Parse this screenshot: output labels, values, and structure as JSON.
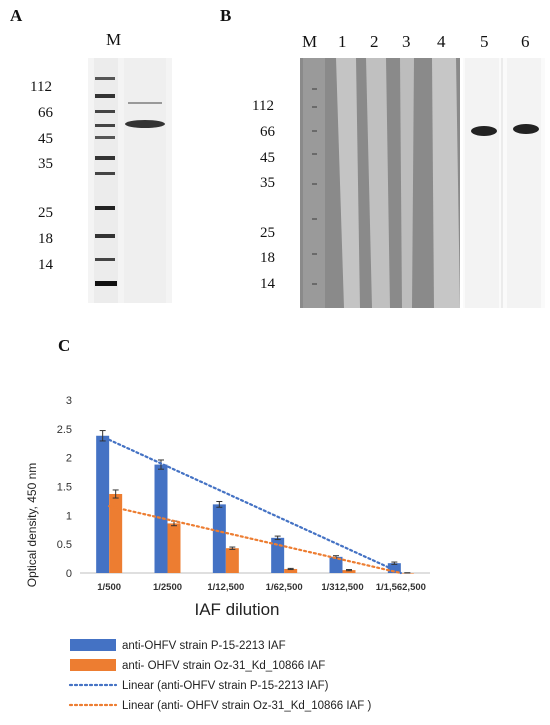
{
  "panel_a": {
    "letter": "A",
    "marker_header": "M",
    "mw_labels": [
      "112",
      "66",
      "45",
      "35",
      "25",
      "18",
      "14"
    ]
  },
  "panel_b": {
    "letter": "B",
    "lane_labels": [
      "M",
      "1",
      "2",
      "3",
      "4",
      "5",
      "6"
    ],
    "mw_labels": [
      "112",
      "66",
      "45",
      "35",
      "25",
      "18",
      "14"
    ]
  },
  "panel_c": {
    "letter": "C"
  },
  "colors": {
    "series1": "#4472C4",
    "series2": "#ED7D31"
  },
  "chart_data": {
    "type": "bar",
    "title": "",
    "xlabel": "IAF dilution",
    "ylabel": "Optical density, 450 nm",
    "ylim": [
      0,
      3
    ],
    "yticks": [
      "0",
      "0.5",
      "1",
      "1.5",
      "2",
      "2.5",
      "3"
    ],
    "categories": [
      "1/500",
      "1/2500",
      "1/12,500",
      "1/62,500",
      "1/312,500",
      "1/1,562,500"
    ],
    "series": [
      {
        "name": "anti-OHFV strain P-15-2213 IAF",
        "values": [
          2.38,
          1.88,
          1.19,
          0.61,
          0.28,
          0.17
        ],
        "errors": [
          0.09,
          0.08,
          0.05,
          0.03,
          0.02,
          0.02
        ]
      },
      {
        "name": "anti- OHFV strain Oz-31_Kd_10866 IAF",
        "values": [
          1.37,
          0.86,
          0.43,
          0.07,
          0.05,
          0.0
        ],
        "errors": [
          0.07,
          0.04,
          0.02,
          0.01,
          0.01,
          0.005
        ]
      }
    ],
    "trendlines": [
      {
        "name": "Linear (anti-OHFV strain P-15-2213 IAF)",
        "start": 2.31,
        "end": 0.0
      },
      {
        "name": "Linear (anti- OHFV strain Oz-31_Kd_10866 IAF )",
        "start": 1.16,
        "end": 0.0
      }
    ],
    "grid": false,
    "legend_position": "bottom"
  }
}
